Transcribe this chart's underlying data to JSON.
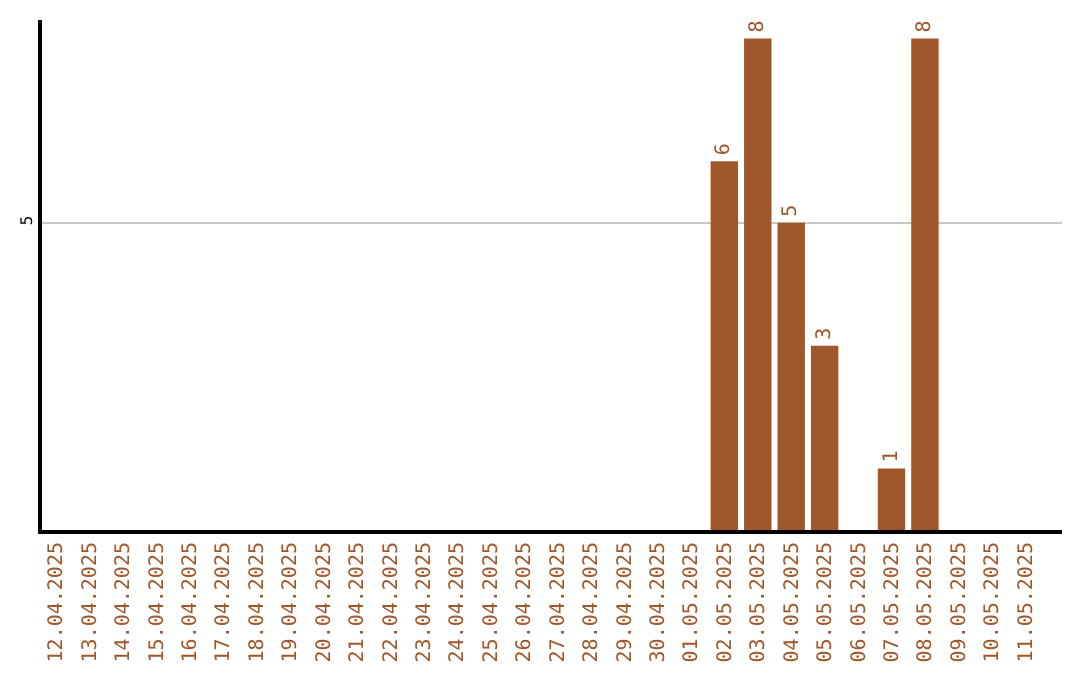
{
  "chart_data": {
    "type": "bar",
    "categories": [
      "12.04.2025",
      "13.04.2025",
      "14.04.2025",
      "15.04.2025",
      "16.04.2025",
      "17.04.2025",
      "18.04.2025",
      "19.04.2025",
      "20.04.2025",
      "21.04.2025",
      "22.04.2025",
      "23.04.2025",
      "24.04.2025",
      "25.04.2025",
      "26.04.2025",
      "27.04.2025",
      "28.04.2025",
      "29.04.2025",
      "30.04.2025",
      "01.05.2025",
      "02.05.2025",
      "03.05.2025",
      "04.05.2025",
      "05.05.2025",
      "06.05.2025",
      "07.05.2025",
      "08.05.2025",
      "09.05.2025",
      "10.05.2025",
      "11.05.2025"
    ],
    "values": [
      null,
      null,
      null,
      null,
      null,
      null,
      null,
      null,
      null,
      null,
      null,
      null,
      null,
      null,
      null,
      null,
      null,
      null,
      null,
      null,
      6,
      8,
      5,
      3,
      null,
      1,
      8,
      null,
      null,
      null
    ],
    "color": "#a0572a",
    "ylim": [
      0,
      8.3
    ],
    "yticks": [
      5
    ],
    "grid": "y",
    "data_labels": true,
    "legend": false
  }
}
